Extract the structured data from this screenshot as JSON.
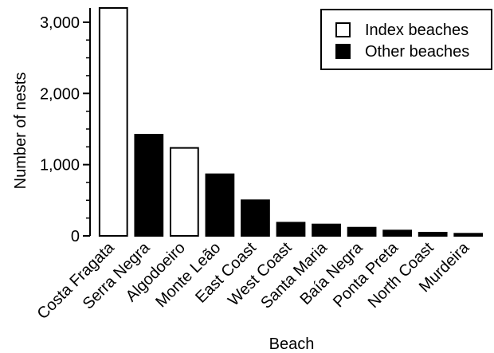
{
  "chart_data": {
    "type": "bar",
    "title": "",
    "xlabel": "Beach",
    "ylabel": "Number of nests",
    "ylim": [
      0,
      3200
    ],
    "yticks": [
      0,
      1000,
      2000,
      3000
    ],
    "ytick_labels": [
      "0",
      "1,000",
      "2,000",
      "3,000"
    ],
    "grid": false,
    "legend_placement": "top-right",
    "categories": [
      "Costa Fragata",
      "Serra Negra",
      "Algodoeiro",
      "Monte Leão",
      "East Coast",
      "West Coast",
      "Santa Maria",
      "Baía Negra",
      "Ponta Preta",
      "North Coast",
      "Murdeira"
    ],
    "values": [
      3200,
      1420,
      1235,
      865,
      500,
      185,
      160,
      115,
      75,
      45,
      30
    ],
    "bar_type": [
      "Index beaches",
      "Other beaches",
      "Index beaches",
      "Other beaches",
      "Other beaches",
      "Other beaches",
      "Other beaches",
      "Other beaches",
      "Other beaches",
      "Other beaches",
      "Other beaches"
    ],
    "legend": [
      {
        "name": "Index beaches",
        "fill": "#ffffff"
      },
      {
        "name": "Other beaches",
        "fill": "#000000"
      }
    ]
  }
}
